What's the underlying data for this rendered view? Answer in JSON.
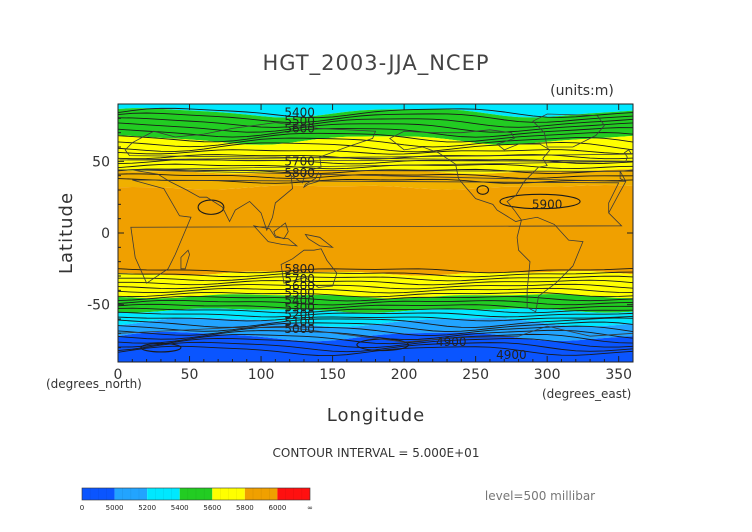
{
  "chart_data": {
    "type": "heatmap",
    "title": "HGT_2003-JJA_NCEP",
    "units": "(units:m)",
    "xlabel": "Longitude",
    "ylabel": "Latitude",
    "x_unit": "(degrees_east)",
    "y_unit": "(degrees_north)",
    "xlim": [
      0,
      360
    ],
    "ylim": [
      -90,
      90
    ],
    "x_ticks": [
      "0",
      "50",
      "100",
      "150",
      "200",
      "250",
      "300",
      "350"
    ],
    "y_ticks": [
      "50",
      "0",
      "-50"
    ],
    "contour_interval": "CONTOUR INTERVAL = 5.000E+01",
    "level": "level=500 millibar",
    "bands": [
      {
        "lat_top": 90,
        "lat_bottom": 84,
        "color": "#00e8ff"
      },
      {
        "lat_top": 84,
        "lat_bottom": 65,
        "color": "#22cc22"
      },
      {
        "lat_top": 65,
        "lat_bottom": 43,
        "color": "#ffff00"
      },
      {
        "lat_top": 43,
        "lat_bottom": 32,
        "color": "#f0b000"
      },
      {
        "lat_top": 32,
        "lat_bottom": -28,
        "color": "#f0a000"
      },
      {
        "lat_top": -28,
        "lat_bottom": -44,
        "color": "#ffff00"
      },
      {
        "lat_top": -44,
        "lat_bottom": -54,
        "color": "#22cc22"
      },
      {
        "lat_top": -54,
        "lat_bottom": -62,
        "color": "#00e8ff"
      },
      {
        "lat_top": -62,
        "lat_bottom": -72,
        "color": "#22a4ff"
      },
      {
        "lat_top": -72,
        "lat_bottom": -90,
        "color": "#0a55ff"
      }
    ],
    "contour_labels": [
      {
        "text": "5400",
        "lon": 127,
        "lat": 84
      },
      {
        "text": "5500",
        "lon": 127,
        "lat": 78
      },
      {
        "text": "5600",
        "lon": 127,
        "lat": 73
      },
      {
        "text": "5700",
        "lon": 127,
        "lat": 50
      },
      {
        "text": "5800",
        "lon": 127,
        "lat": 42
      },
      {
        "text": "5900",
        "lon": 300,
        "lat": 20
      },
      {
        "text": "5800",
        "lon": 127,
        "lat": -25
      },
      {
        "text": "5700",
        "lon": 127,
        "lat": -32
      },
      {
        "text": "5600",
        "lon": 127,
        "lat": -37
      },
      {
        "text": "5500",
        "lon": 127,
        "lat": -42
      },
      {
        "text": "5400",
        "lon": 127,
        "lat": -47
      },
      {
        "text": "5300",
        "lon": 127,
        "lat": -52
      },
      {
        "text": "5200",
        "lon": 127,
        "lat": -57
      },
      {
        "text": "5100",
        "lon": 127,
        "lat": -62
      },
      {
        "text": "5000",
        "lon": 127,
        "lat": -67
      },
      {
        "text": "4900",
        "lon": 233,
        "lat": -76
      },
      {
        "text": "4900",
        "lon": 275,
        "lat": -85
      }
    ],
    "colorbar": {
      "labels": [
        "0",
        "5000",
        "5200",
        "5400",
        "5600",
        "5800",
        "6000",
        "∞"
      ],
      "colors": [
        "#0a55ff",
        "#22a4ff",
        "#00e8ff",
        "#22cc22",
        "#ffff00",
        "#f0a000",
        "#ff1010"
      ]
    }
  }
}
